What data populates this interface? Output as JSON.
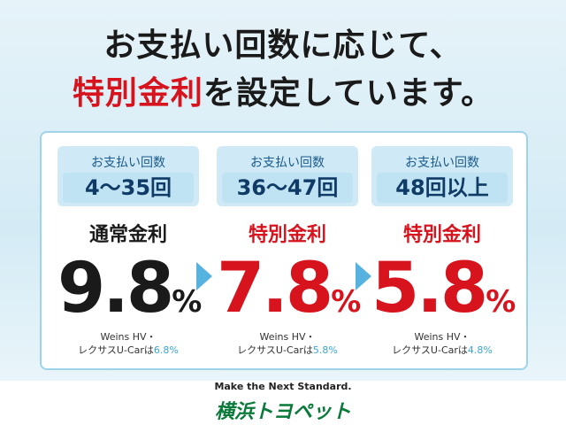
{
  "header": {
    "line1": "お支払い回数に応じて、",
    "line2_highlight": "特別金利",
    "line2_rest": "を設定しています。"
  },
  "columns": [
    {
      "caption": "お支払い回数",
      "range": "4〜35回",
      "label": "通常金利",
      "rate": "9.8",
      "unit": "%",
      "note_line1": "Weins HV・",
      "note_line2": "レクサスU-Carは",
      "note_rate": "6.8%"
    },
    {
      "caption": "お支払い回数",
      "range": "36〜47回",
      "label": "特別金利",
      "rate": "7.8",
      "unit": "%",
      "note_line1": "Weins HV・",
      "note_line2": "レクサスU-Carは",
      "note_rate": "5.8%"
    },
    {
      "caption": "お支払い回数",
      "range": "48回以上",
      "label": "特別金利",
      "rate": "5.8",
      "unit": "%",
      "note_line1": "Weins HV・",
      "note_line2": "レクサスU-Carは",
      "note_rate": "4.8%"
    }
  ],
  "footer": {
    "slogan": "Make the Next Standard.",
    "brand": "横浜トヨペット"
  }
}
